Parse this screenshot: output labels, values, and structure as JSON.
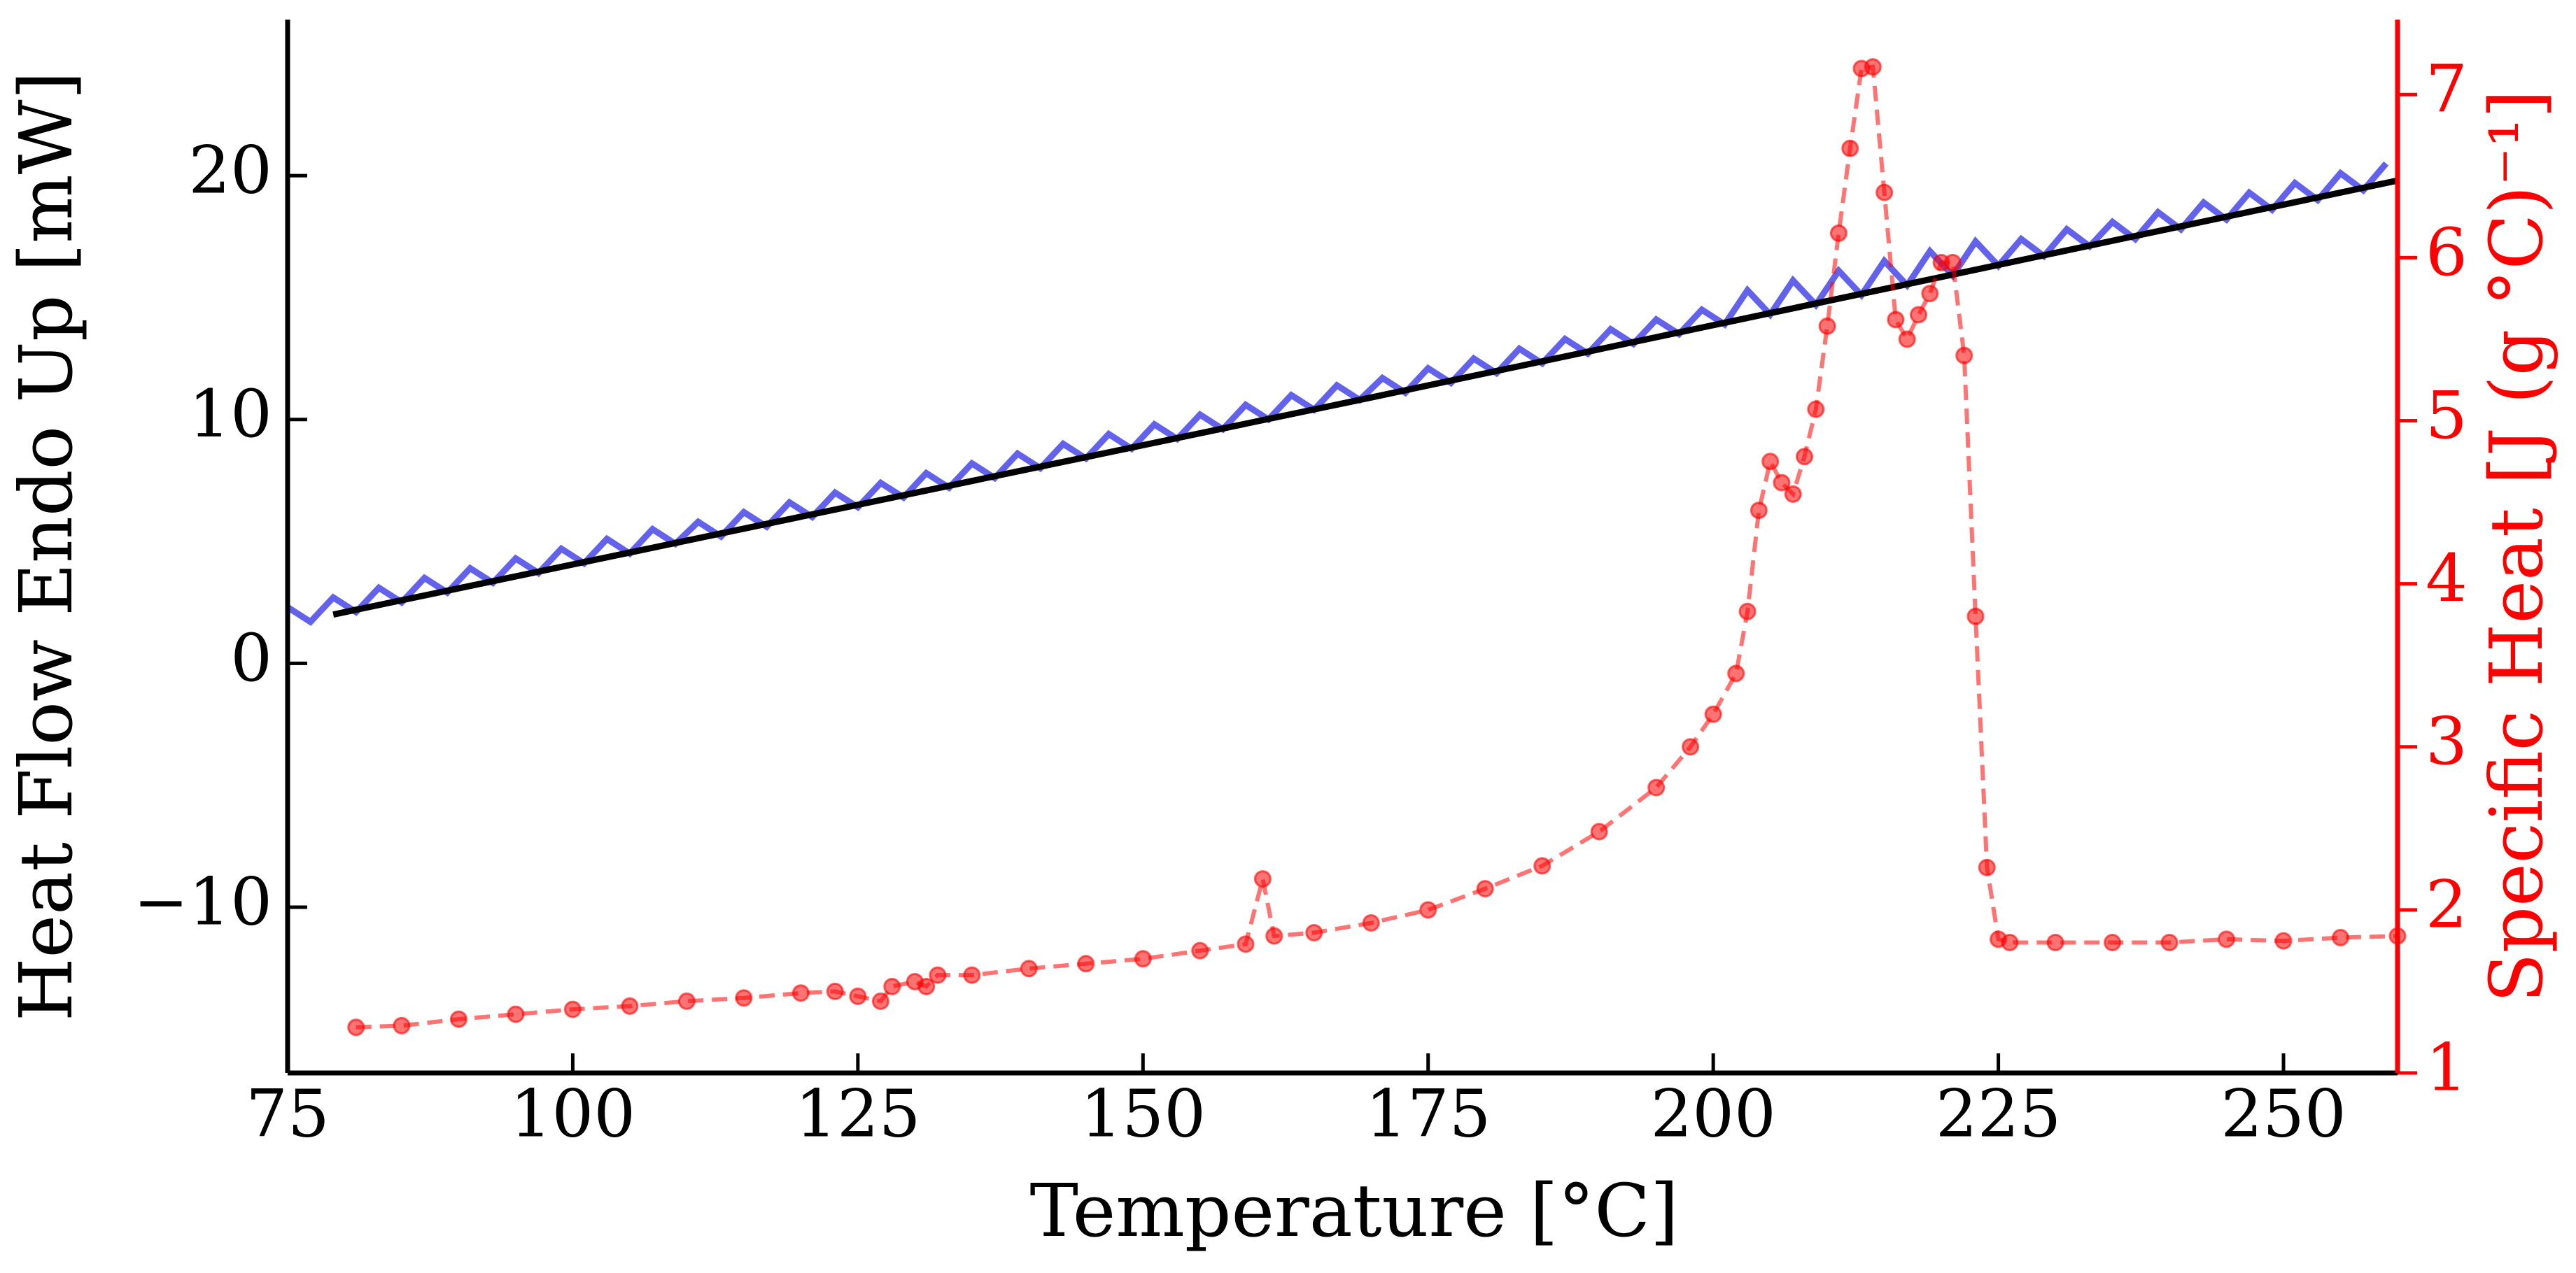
{
  "chart_data": {
    "type": "line",
    "x_label": "Temperature [°C]",
    "y_label": "Heat Flow Endo Up [mW]",
    "y2_label": "Specific Heat [J (g °C)⁻¹]",
    "xlim": [
      75,
      260
    ],
    "xticks": [
      75,
      100,
      125,
      150,
      175,
      200,
      225,
      250
    ],
    "ylim": [
      -16.8,
      26.4
    ],
    "yticks": [
      {
        "value": -10,
        "label": "−10"
      },
      0,
      10,
      20
    ],
    "y2lim": [
      1,
      7.46
    ],
    "y2ticks": [
      1,
      2,
      3,
      4,
      5,
      6,
      7
    ],
    "y2_color": "#ff0000",
    "series": [
      {
        "color": "#3b3be8",
        "axis": "y",
        "x": [
          75,
          77,
          79,
          81,
          83,
          85,
          87,
          89,
          91,
          93,
          95,
          97,
          99,
          101,
          103,
          105,
          107,
          109,
          111,
          113,
          115,
          117,
          119,
          121,
          123,
          125,
          127,
          129,
          131,
          133,
          135,
          137,
          139,
          141,
          143,
          145,
          147,
          149,
          151,
          153,
          155,
          157,
          159,
          161,
          163,
          165,
          167,
          169,
          171,
          173,
          175,
          177,
          179,
          181,
          183,
          185,
          187,
          189,
          191,
          193,
          195,
          197,
          199,
          201,
          203,
          205,
          207,
          209,
          211,
          213,
          215,
          217,
          219,
          221,
          223,
          225,
          227,
          229,
          231,
          233,
          235,
          237,
          239,
          241,
          243,
          245,
          247,
          249,
          251,
          253,
          255,
          257,
          259
        ],
        "values": [
          2.3,
          1.7,
          2.7,
          2.1,
          3.1,
          2.5,
          3.5,
          2.9,
          3.9,
          3.3,
          4.3,
          3.7,
          4.7,
          4.1,
          5.1,
          4.5,
          5.5,
          4.9,
          5.8,
          5.2,
          6.2,
          5.6,
          6.6,
          6.0,
          7.0,
          6.4,
          7.4,
          6.8,
          7.8,
          7.2,
          8.2,
          7.6,
          8.6,
          8.0,
          9.0,
          8.4,
          9.4,
          8.8,
          9.8,
          9.2,
          10.2,
          9.6,
          10.6,
          10.0,
          11.0,
          10.4,
          11.4,
          10.8,
          11.7,
          11.1,
          12.1,
          11.5,
          12.5,
          11.9,
          12.9,
          12.3,
          13.3,
          12.7,
          13.7,
          13.1,
          14.1,
          13.5,
          14.5,
          13.9,
          15.3,
          14.3,
          15.7,
          14.7,
          16.1,
          15.1,
          16.5,
          15.5,
          16.9,
          15.9,
          17.3,
          16.3,
          17.4,
          16.7,
          17.8,
          17.1,
          18.1,
          17.4,
          18.5,
          17.8,
          18.9,
          18.2,
          19.3,
          18.6,
          19.7,
          19.0,
          20.1,
          19.4,
          20.5
        ]
      },
      {
        "color": "#000000",
        "axis": "y",
        "x": [
          79,
          170,
          260
        ],
        "values": [
          2.0,
          10.9,
          19.8
        ]
      },
      {
        "color": "#ff0000",
        "axis": "y2",
        "dashed": true,
        "markers": true,
        "x": [
          81,
          85,
          90,
          95,
          100,
          105,
          110,
          115,
          120,
          123,
          125,
          127,
          128,
          130,
          131,
          132,
          135,
          140,
          145,
          150,
          155,
          159,
          160.5,
          161.5,
          165,
          170,
          175,
          180,
          185,
          190,
          195,
          198,
          200,
          202,
          203,
          204,
          205,
          206,
          207,
          208,
          209,
          210,
          211,
          212,
          213,
          214,
          215,
          216,
          217,
          218,
          219,
          220,
          221,
          222,
          223,
          224,
          225,
          226,
          230,
          235,
          240,
          245,
          250,
          255,
          260
        ],
        "values": [
          1.28,
          1.29,
          1.33,
          1.36,
          1.39,
          1.41,
          1.44,
          1.46,
          1.49,
          1.5,
          1.47,
          1.44,
          1.53,
          1.56,
          1.53,
          1.6,
          1.6,
          1.64,
          1.67,
          1.7,
          1.75,
          1.79,
          2.19,
          1.84,
          1.86,
          1.92,
          2.0,
          2.13,
          2.27,
          2.48,
          2.75,
          3.0,
          3.2,
          3.45,
          3.83,
          4.45,
          4.75,
          4.62,
          4.55,
          4.78,
          5.07,
          5.58,
          6.15,
          6.67,
          7.16,
          7.17,
          6.4,
          5.62,
          5.5,
          5.65,
          5.78,
          5.97,
          5.97,
          5.4,
          3.8,
          2.26,
          1.82,
          1.8,
          1.8,
          1.8,
          1.8,
          1.82,
          1.81,
          1.83,
          1.84
        ]
      }
    ]
  }
}
